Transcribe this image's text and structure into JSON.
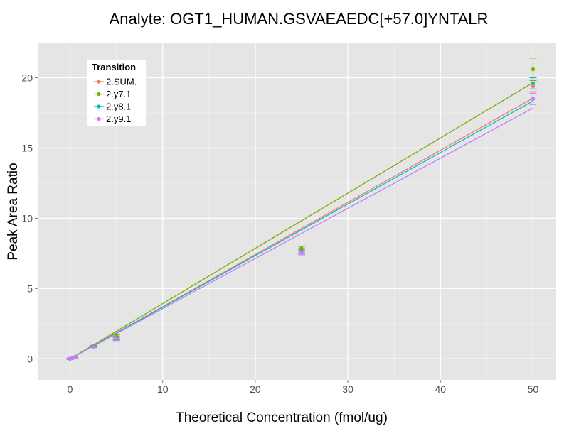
{
  "chart_data": {
    "type": "scatter",
    "title": "Analyte: OGT1_HUMAN.GSVAEAEDC[+57.0]YNTALR",
    "xlabel": "Theoretical Concentration (fmol/ug)",
    "ylabel": "Peak Area Ratio",
    "xlim": [
      -3.5,
      52.5
    ],
    "ylim": [
      -1.5,
      22.5
    ],
    "x_ticks": [
      0,
      10,
      20,
      30,
      40,
      50
    ],
    "y_ticks": [
      0,
      5,
      10,
      15,
      20
    ],
    "grid": true,
    "legend": {
      "title": "Transition",
      "position": "top-left"
    },
    "series": [
      {
        "name": "2.SUM.",
        "color": "#F8766D",
        "points": [
          {
            "x": 0,
            "y": 0.0,
            "err": 0.05
          },
          {
            "x": 0.25,
            "y": 0.05,
            "err": 0.05
          },
          {
            "x": 0.5,
            "y": 0.1,
            "err": 0.05
          },
          {
            "x": 2.5,
            "y": 0.9,
            "err": 0.05
          },
          {
            "x": 5,
            "y": 1.5,
            "err": 0.1
          },
          {
            "x": 25,
            "y": 7.7,
            "err": 0.15
          },
          {
            "x": 50,
            "y": 19.4,
            "err": 0.4
          }
        ],
        "fit": {
          "x0": 0,
          "y0": 0.0,
          "x1": 50,
          "y1": 18.55
        }
      },
      {
        "name": "2.y7.1",
        "color": "#7CAE00",
        "points": [
          {
            "x": 0,
            "y": 0.0,
            "err": 0.05
          },
          {
            "x": 0.25,
            "y": 0.06,
            "err": 0.05
          },
          {
            "x": 0.5,
            "y": 0.12,
            "err": 0.05
          },
          {
            "x": 2.5,
            "y": 0.9,
            "err": 0.05
          },
          {
            "x": 5,
            "y": 1.6,
            "err": 0.1
          },
          {
            "x": 25,
            "y": 7.85,
            "err": 0.15
          },
          {
            "x": 50,
            "y": 20.6,
            "err": 0.8
          }
        ],
        "fit": {
          "x0": 0,
          "y0": 0.0,
          "x1": 50,
          "y1": 19.65
        }
      },
      {
        "name": "2.y8.1",
        "color": "#00BFC4",
        "points": [
          {
            "x": 0,
            "y": 0.0,
            "err": 0.05
          },
          {
            "x": 0.25,
            "y": 0.05,
            "err": 0.05
          },
          {
            "x": 0.5,
            "y": 0.1,
            "err": 0.05
          },
          {
            "x": 2.5,
            "y": 0.88,
            "err": 0.05
          },
          {
            "x": 5,
            "y": 1.45,
            "err": 0.1
          },
          {
            "x": 25,
            "y": 7.65,
            "err": 0.15
          },
          {
            "x": 50,
            "y": 19.6,
            "err": 0.4
          }
        ],
        "fit": {
          "x0": 0,
          "y0": 0.0,
          "x1": 50,
          "y1": 18.35
        }
      },
      {
        "name": "2.y9.1",
        "color": "#C77CFF",
        "points": [
          {
            "x": 0,
            "y": 0.0,
            "err": 0.05
          },
          {
            "x": 0.25,
            "y": 0.05,
            "err": 0.05
          },
          {
            "x": 0.5,
            "y": 0.1,
            "err": 0.05
          },
          {
            "x": 2.5,
            "y": 0.85,
            "err": 0.05
          },
          {
            "x": 5,
            "y": 1.4,
            "err": 0.1
          },
          {
            "x": 25,
            "y": 7.55,
            "err": 0.15
          },
          {
            "x": 50,
            "y": 18.5,
            "err": 0.4
          }
        ],
        "fit": {
          "x0": 0,
          "y0": 0.0,
          "x1": 50,
          "y1": 17.85
        }
      }
    ]
  }
}
